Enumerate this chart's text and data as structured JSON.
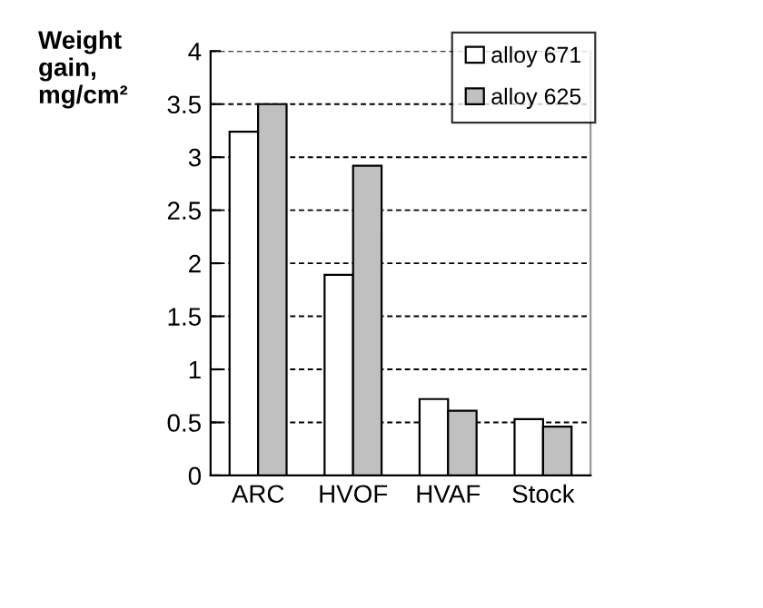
{
  "chart_data": {
    "type": "bar",
    "ylabel": "Weight\ngain,\nmg/cm²",
    "categories": [
      "ARC",
      "HVOF",
      "HVAF",
      "Stock"
    ],
    "series": [
      {
        "name": "alloy 671",
        "color": "#ffffff",
        "values": [
          3.24,
          1.89,
          0.72,
          0.53
        ]
      },
      {
        "name": "alloy 625",
        "color": "#c0c0c0",
        "values": [
          3.5,
          2.92,
          0.61,
          0.46
        ]
      }
    ],
    "ylim": [
      0,
      4
    ],
    "yticks": [
      0,
      0.5,
      1,
      1.5,
      2,
      2.5,
      3,
      3.5,
      4
    ],
    "grid": "y",
    "legend": "top right"
  }
}
